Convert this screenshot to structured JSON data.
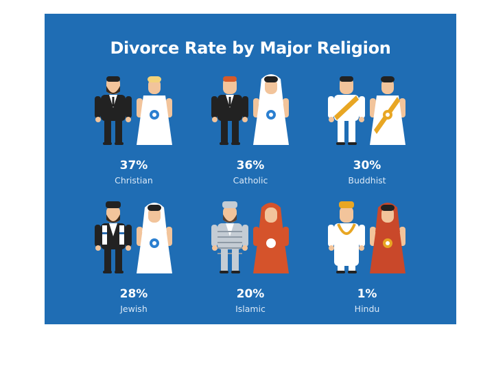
{
  "chart_data": {
    "type": "table",
    "title": "Divorce Rate by Major Religion",
    "categories": [
      "Christian",
      "Catholic",
      "Buddhist",
      "Jewish",
      "Islamic",
      "Hindu"
    ],
    "values": [
      37,
      36,
      30,
      28,
      20,
      1
    ],
    "labels": [
      "37%",
      "36%",
      "30%",
      "28%",
      "20%",
      "1%"
    ],
    "unit": "%"
  },
  "colors": {
    "background": "#1f6db4",
    "text": "#ffffff",
    "outfit_dark": "#222222",
    "outfit_white": "#ffffff",
    "saffron": "#e8a623",
    "muslim_bride": "#d5532b",
    "hindu_bride": "#c9482a"
  },
  "icons": [
    "christian-couple-icon",
    "catholic-couple-icon",
    "buddhist-couple-icon",
    "jewish-couple-icon",
    "islamic-couple-icon",
    "hindu-couple-icon"
  ]
}
